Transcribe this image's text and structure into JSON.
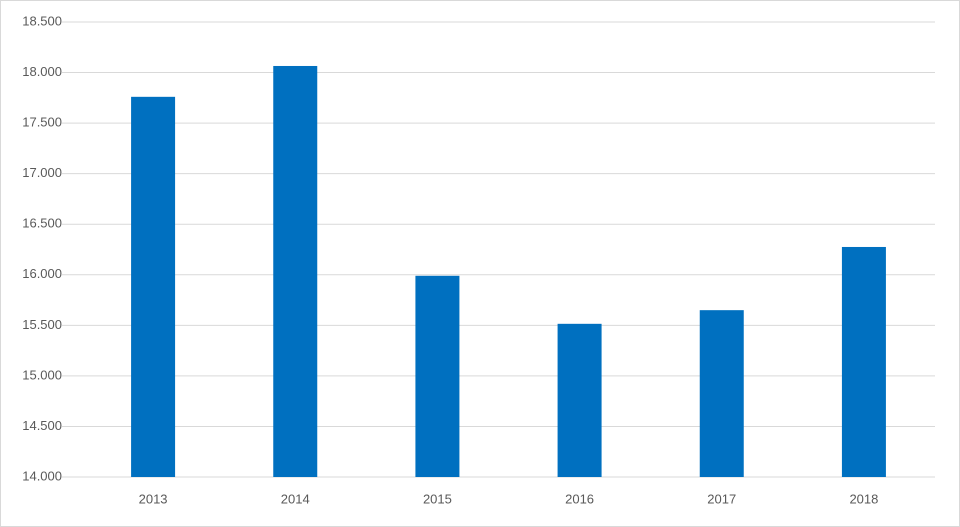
{
  "chart_data": {
    "type": "bar",
    "categories": [
      "2013",
      "2014",
      "2015",
      "2016",
      "2017",
      "2018"
    ],
    "values": [
      17760,
      18065,
      15990,
      15515,
      15650,
      16275
    ],
    "color": "#0070c0",
    "ylim": [
      14000,
      18500
    ],
    "yticks": [
      {
        "value": 14000,
        "label": "14.000"
      },
      {
        "value": 14500,
        "label": "14.500"
      },
      {
        "value": 15000,
        "label": "15.000"
      },
      {
        "value": 15500,
        "label": "15.500"
      },
      {
        "value": 16000,
        "label": "16.000"
      },
      {
        "value": 16500,
        "label": "16.500"
      },
      {
        "value": 17000,
        "label": "17.000"
      },
      {
        "value": 17500,
        "label": "17.500"
      },
      {
        "value": 18000,
        "label": "18.000"
      },
      {
        "value": 18500,
        "label": "18.500"
      }
    ],
    "grid": true
  }
}
